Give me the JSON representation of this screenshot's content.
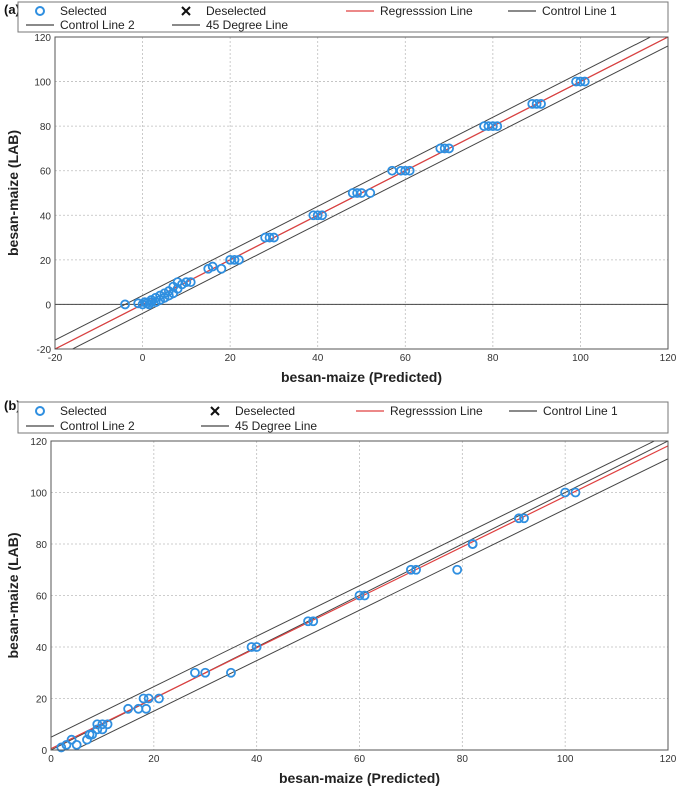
{
  "chart_data": [
    {
      "type": "scatter",
      "panel_label": "(a)",
      "xlabel": "besan-maize (Predicted)",
      "ylabel": "besan-maize (LAB)",
      "xlim": [
        -20,
        120
      ],
      "ylim": [
        -20,
        120
      ],
      "xticks": [
        -20,
        0,
        20,
        40,
        60,
        80,
        100,
        120
      ],
      "yticks": [
        -20,
        0,
        20,
        40,
        60,
        80,
        100,
        120
      ],
      "grid": true,
      "legend_position": "top",
      "legend": [
        {
          "label": "Selected",
          "kind": "marker-circle",
          "color": "#2f8fe0"
        },
        {
          "label": "Deselected",
          "kind": "marker-x",
          "color": "#111111"
        },
        {
          "label": "Regresssion Line",
          "kind": "line",
          "color": "#e04040"
        },
        {
          "label": "Control Line 1",
          "kind": "line",
          "color": "#444444"
        },
        {
          "label": "Control Line 2",
          "kind": "line",
          "color": "#444444"
        },
        {
          "label": "45 Degree Line",
          "kind": "line",
          "color": "#444444"
        }
      ],
      "lines": {
        "regression": {
          "slope": 1.0,
          "intercept": 0
        },
        "control_1": {
          "slope": 1.0,
          "intercept": -4
        },
        "control_2": {
          "slope": 1.0,
          "intercept": 4
        },
        "degree_45": {
          "slope": 1.0,
          "intercept": 0
        }
      },
      "series": [
        {
          "name": "Selected",
          "points": [
            [
              -4,
              0
            ],
            [
              -1,
              0.5
            ],
            [
              0,
              0
            ],
            [
              0.5,
              1
            ],
            [
              1,
              0.5
            ],
            [
              1.5,
              0
            ],
            [
              2,
              1
            ],
            [
              2,
              2
            ],
            [
              3,
              1
            ],
            [
              3,
              3
            ],
            [
              4,
              2
            ],
            [
              4,
              4
            ],
            [
              5,
              3
            ],
            [
              5,
              5
            ],
            [
              6,
              4
            ],
            [
              6,
              6
            ],
            [
              7,
              8
            ],
            [
              7,
              5
            ],
            [
              8,
              7
            ],
            [
              8,
              10
            ],
            [
              9,
              9
            ],
            [
              10,
              10
            ],
            [
              11,
              10
            ],
            [
              15,
              16
            ],
            [
              16,
              17
            ],
            [
              18,
              16
            ],
            [
              20,
              20
            ],
            [
              21,
              20
            ],
            [
              22,
              20
            ],
            [
              28,
              30
            ],
            [
              29,
              30
            ],
            [
              30,
              30
            ],
            [
              39,
              40
            ],
            [
              40,
              40
            ],
            [
              41,
              40
            ],
            [
              48,
              50
            ],
            [
              49,
              50
            ],
            [
              50,
              50
            ],
            [
              52,
              50
            ],
            [
              57,
              60
            ],
            [
              59,
              60
            ],
            [
              60,
              60
            ],
            [
              61,
              60
            ],
            [
              68,
              70
            ],
            [
              69,
              70
            ],
            [
              70,
              70
            ],
            [
              78,
              80
            ],
            [
              79,
              80
            ],
            [
              80,
              80
            ],
            [
              81,
              80
            ],
            [
              89,
              90
            ],
            [
              90,
              90
            ],
            [
              91,
              90
            ],
            [
              99,
              100
            ],
            [
              100,
              100
            ],
            [
              101,
              100
            ]
          ]
        }
      ]
    },
    {
      "type": "scatter",
      "panel_label": "(b)",
      "xlabel": "besan-maize (Predicted)",
      "ylabel": "besan-maize (LAB)",
      "xlim": [
        0,
        120
      ],
      "ylim": [
        0,
        120
      ],
      "xticks": [
        0,
        20,
        40,
        60,
        80,
        100,
        120
      ],
      "yticks": [
        0,
        20,
        40,
        60,
        80,
        100,
        120
      ],
      "grid": true,
      "legend_position": "top",
      "legend": [
        {
          "label": "Selected",
          "kind": "marker-circle",
          "color": "#2f8fe0"
        },
        {
          "label": "Deselected",
          "kind": "marker-x",
          "color": "#111111"
        },
        {
          "label": "Regresssion Line",
          "kind": "line",
          "color": "#e04040"
        },
        {
          "label": "Control Line 1",
          "kind": "line",
          "color": "#444444"
        },
        {
          "label": "Control Line 2",
          "kind": "line",
          "color": "#444444"
        },
        {
          "label": "45 Degree Line",
          "kind": "line",
          "color": "#444444"
        }
      ],
      "lines": {
        "regression": {
          "slope": 0.98,
          "intercept": 0.5
        },
        "control_1": {
          "slope": 0.98,
          "intercept": -4.5
        },
        "control_2": {
          "slope": 0.98,
          "intercept": 5
        },
        "degree_45": {
          "slope": 1.0,
          "intercept": 0
        }
      },
      "series": [
        {
          "name": "Selected",
          "points": [
            [
              2,
              1
            ],
            [
              3,
              2
            ],
            [
              4,
              4
            ],
            [
              5,
              2
            ],
            [
              7,
              4
            ],
            [
              7.5,
              6
            ],
            [
              8,
              6
            ],
            [
              9,
              8
            ],
            [
              9,
              10
            ],
            [
              10,
              8
            ],
            [
              10,
              10
            ],
            [
              11,
              10
            ],
            [
              15,
              16
            ],
            [
              17,
              16
            ],
            [
              18,
              20
            ],
            [
              18.5,
              16
            ],
            [
              19,
              20
            ],
            [
              21,
              20
            ],
            [
              28,
              30
            ],
            [
              30,
              30
            ],
            [
              35,
              30
            ],
            [
              39,
              40
            ],
            [
              40,
              40
            ],
            [
              50,
              50
            ],
            [
              51,
              50
            ],
            [
              60,
              60
            ],
            [
              61,
              60
            ],
            [
              70,
              70
            ],
            [
              71,
              70
            ],
            [
              79,
              70
            ],
            [
              82,
              80
            ],
            [
              82,
              80
            ],
            [
              91,
              90
            ],
            [
              92,
              90
            ],
            [
              100,
              100
            ],
            [
              102,
              100
            ]
          ]
        }
      ]
    }
  ]
}
